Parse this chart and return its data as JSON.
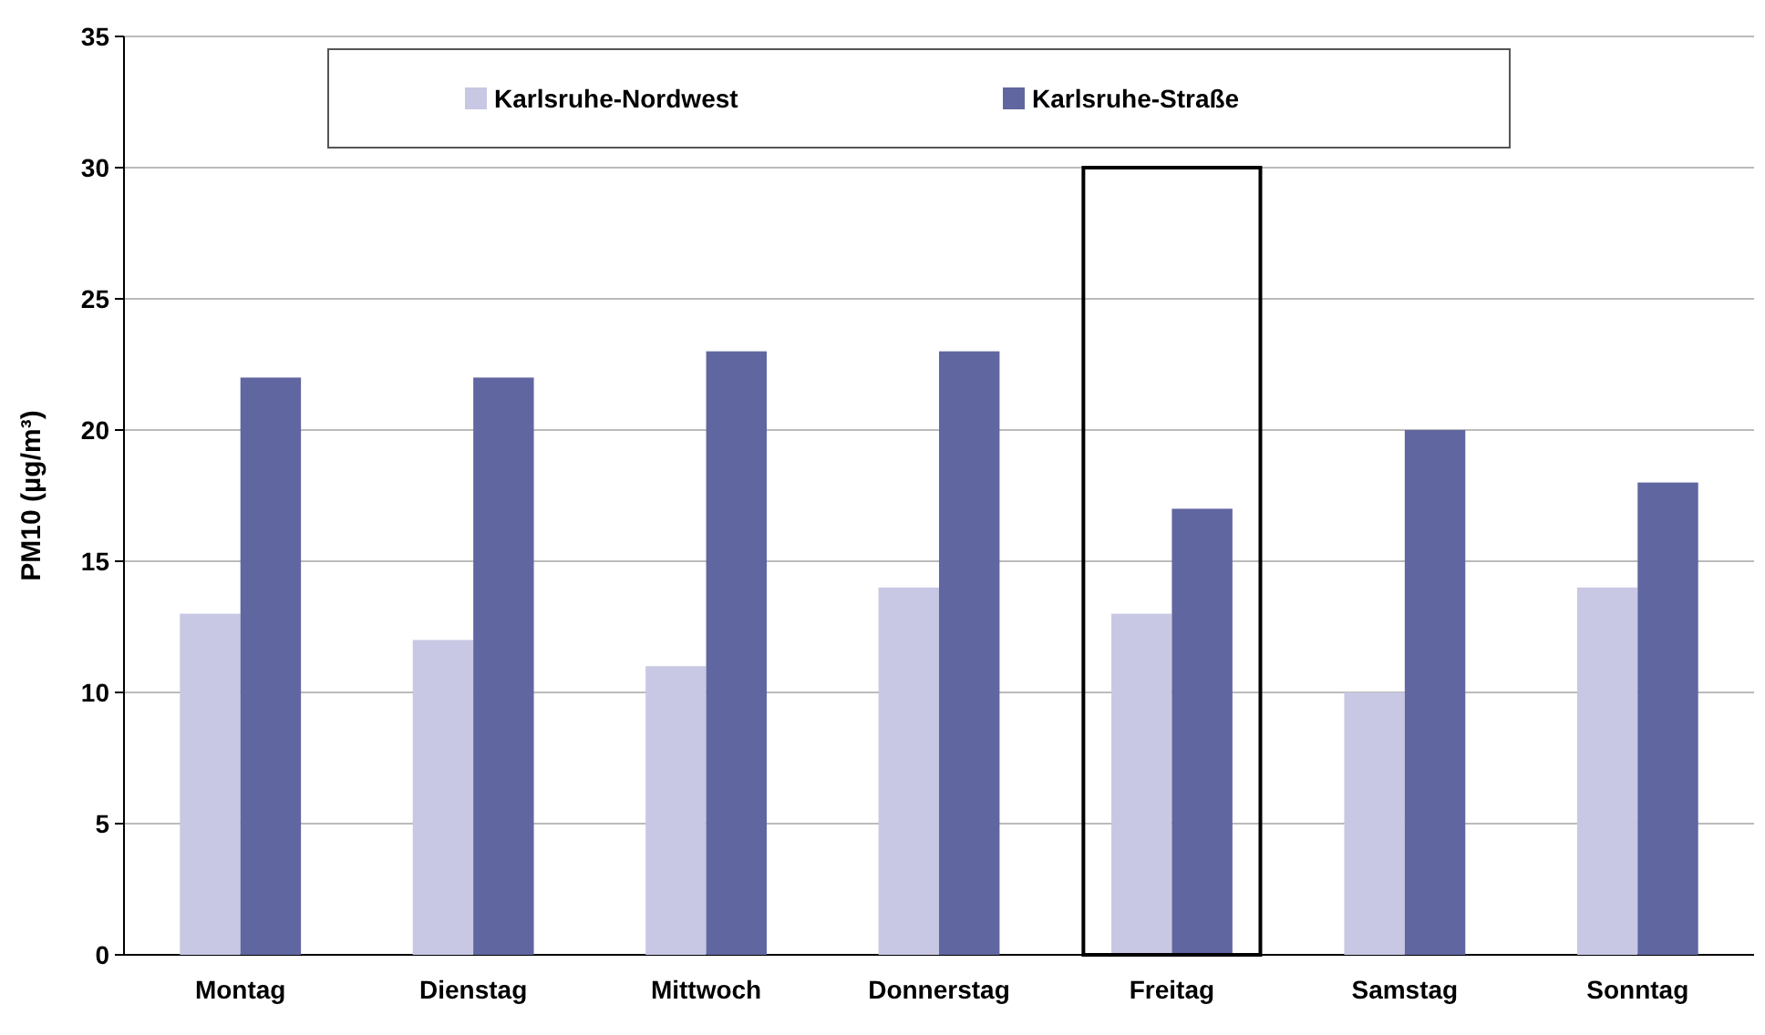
{
  "chart_data": {
    "type": "bar",
    "ylabel": "PM10  (µg/m³)",
    "categories": [
      "Montag",
      "Dienstag",
      "Mittwoch",
      "Donnerstag",
      "Freitag",
      "Samstag",
      "Sonntag"
    ],
    "series": [
      {
        "name": "Karlsruhe-Nordwest",
        "color": "#c8c8e4",
        "values": [
          13,
          12,
          11,
          14,
          13,
          10,
          14
        ]
      },
      {
        "name": "Karlsruhe-Straße",
        "color": "#6066a0",
        "values": [
          22,
          22,
          23,
          23,
          17,
          20,
          18
        ]
      },
      {
        "color": "#000000",
        "values": [
          null,
          null,
          null,
          null,
          30,
          null,
          null
        ]
      }
    ],
    "ylim": [
      0,
      35
    ],
    "yticks": [
      0,
      5,
      10,
      15,
      20,
      25,
      30,
      35
    ],
    "grid": "y",
    "legend": "top"
  }
}
